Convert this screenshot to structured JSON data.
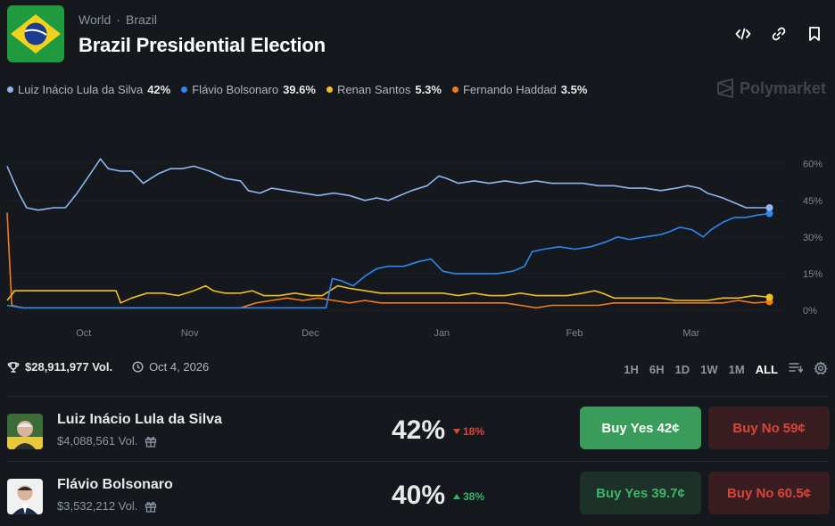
{
  "breadcrumb": {
    "first": "World",
    "sep": "·",
    "second": "Brazil"
  },
  "title": "Brazil Presidential Election",
  "brand": {
    "name": "Polymarket"
  },
  "icons": {
    "embed": "code-icon",
    "link": "link-icon",
    "bookmark": "bookmark-icon"
  },
  "colors": {
    "lula": "#8fb6ee",
    "bolsonaro": "#2f86f0",
    "santos": "#f0c020",
    "haddad": "#f07a1e",
    "buy_yes": "#3a9c5b",
    "buy_no": "#d8453b"
  },
  "legend": [
    {
      "name": "Luiz Inácio Lula da Silva",
      "pct": "42%",
      "color": "#8fb6ee"
    },
    {
      "name": "Flávio Bolsonaro",
      "pct": "39.6%",
      "color": "#2f86f0"
    },
    {
      "name": "Renan Santos",
      "pct": "5.3%",
      "color": "#f0c020"
    },
    {
      "name": "Fernando Haddad",
      "pct": "3.5%",
      "color": "#f07a1e"
    }
  ],
  "chart_data": {
    "type": "line",
    "x_ticks": [
      "Oct",
      "Nov",
      "Dec",
      "Jan",
      "Feb",
      "Mar"
    ],
    "y_ticks": [
      "60%",
      "45%",
      "30%",
      "15%",
      "0%"
    ],
    "ylim": [
      0,
      65
    ],
    "x_range": [
      0,
      100
    ],
    "grid": true,
    "legend_position": "top-left",
    "series": [
      {
        "name": "Luiz Inácio Lula da Silva",
        "color": "#8fb6ee",
        "points": [
          [
            0,
            59
          ],
          [
            0.8,
            53
          ],
          [
            1.5,
            48
          ],
          [
            2.5,
            42
          ],
          [
            4,
            41
          ],
          [
            6,
            42
          ],
          [
            7.5,
            42
          ],
          [
            9,
            48
          ],
          [
            10.5,
            55
          ],
          [
            12,
            62
          ],
          [
            13,
            58
          ],
          [
            14.5,
            57
          ],
          [
            16,
            57
          ],
          [
            17.5,
            52
          ],
          [
            19.5,
            56
          ],
          [
            21,
            58
          ],
          [
            22.5,
            58
          ],
          [
            24,
            59
          ],
          [
            26,
            57
          ],
          [
            28,
            54
          ],
          [
            30,
            53
          ],
          [
            31,
            49
          ],
          [
            32.5,
            48
          ],
          [
            34,
            50
          ],
          [
            36,
            49
          ],
          [
            38,
            48
          ],
          [
            40,
            47
          ],
          [
            42,
            48
          ],
          [
            44,
            47
          ],
          [
            46,
            45
          ],
          [
            47.5,
            46
          ],
          [
            49,
            45
          ],
          [
            50.5,
            47
          ],
          [
            52,
            49
          ],
          [
            54,
            51
          ],
          [
            55.5,
            55
          ],
          [
            56.5,
            54
          ],
          [
            58,
            52
          ],
          [
            60,
            53
          ],
          [
            62,
            52
          ],
          [
            64,
            53
          ],
          [
            66,
            52
          ],
          [
            68,
            53
          ],
          [
            70,
            52
          ],
          [
            72,
            52
          ],
          [
            74,
            52
          ],
          [
            76,
            51
          ],
          [
            78,
            51
          ],
          [
            80,
            50
          ],
          [
            82,
            50
          ],
          [
            84,
            49
          ],
          [
            86,
            50
          ],
          [
            87.5,
            51
          ],
          [
            89,
            50
          ],
          [
            90,
            48
          ],
          [
            92,
            46
          ],
          [
            93.5,
            44
          ],
          [
            95,
            42
          ],
          [
            96.5,
            42
          ],
          [
            98,
            42
          ]
        ]
      },
      {
        "name": "Flávio Bolsonaro",
        "color": "#2f86f0",
        "points": [
          [
            0,
            2
          ],
          [
            2,
            1
          ],
          [
            4,
            1
          ],
          [
            6,
            1
          ],
          [
            8,
            1
          ],
          [
            10,
            1
          ],
          [
            12,
            1
          ],
          [
            14,
            1
          ],
          [
            16,
            1
          ],
          [
            18,
            1
          ],
          [
            20,
            1
          ],
          [
            22,
            1
          ],
          [
            24,
            1
          ],
          [
            26,
            1
          ],
          [
            28,
            1
          ],
          [
            30,
            1
          ],
          [
            32,
            1
          ],
          [
            34,
            1
          ],
          [
            36,
            1
          ],
          [
            38,
            1
          ],
          [
            40,
            1
          ],
          [
            41,
            1
          ],
          [
            41.8,
            13
          ],
          [
            43,
            12
          ],
          [
            44.5,
            10
          ],
          [
            46,
            14
          ],
          [
            47.5,
            17
          ],
          [
            49,
            18
          ],
          [
            51,
            18
          ],
          [
            53,
            20
          ],
          [
            54.5,
            21
          ],
          [
            56,
            16
          ],
          [
            57.5,
            15
          ],
          [
            59,
            15
          ],
          [
            61,
            15
          ],
          [
            63,
            15
          ],
          [
            65,
            16
          ],
          [
            66.5,
            18
          ],
          [
            67.5,
            24
          ],
          [
            69,
            25
          ],
          [
            71,
            26
          ],
          [
            73,
            25
          ],
          [
            75,
            26
          ],
          [
            77,
            28
          ],
          [
            78.5,
            30
          ],
          [
            80,
            29
          ],
          [
            82,
            30
          ],
          [
            84,
            31
          ],
          [
            85,
            32
          ],
          [
            86.5,
            34
          ],
          [
            88,
            33
          ],
          [
            89.5,
            30
          ],
          [
            90.5,
            33
          ],
          [
            92,
            36
          ],
          [
            93.5,
            38
          ],
          [
            95,
            38
          ],
          [
            96.5,
            39
          ],
          [
            98,
            39.6
          ]
        ]
      },
      {
        "name": "Renan Santos",
        "color": "#f0c020",
        "points": [
          [
            0,
            4
          ],
          [
            1,
            8
          ],
          [
            2.5,
            8
          ],
          [
            4,
            8
          ],
          [
            6,
            8
          ],
          [
            8,
            8
          ],
          [
            10,
            8
          ],
          [
            12,
            8
          ],
          [
            14,
            8
          ],
          [
            14.6,
            3
          ],
          [
            16,
            5
          ],
          [
            18,
            7
          ],
          [
            20,
            7
          ],
          [
            22,
            6
          ],
          [
            24,
            8
          ],
          [
            25.5,
            10
          ],
          [
            26.5,
            8
          ],
          [
            28,
            7
          ],
          [
            30,
            7
          ],
          [
            31.5,
            8
          ],
          [
            33,
            6
          ],
          [
            35,
            6
          ],
          [
            37,
            7
          ],
          [
            39,
            6
          ],
          [
            40.5,
            6
          ],
          [
            41.5,
            8
          ],
          [
            42.5,
            10
          ],
          [
            44,
            9
          ],
          [
            46,
            8
          ],
          [
            48,
            7
          ],
          [
            50,
            7
          ],
          [
            52,
            7
          ],
          [
            54,
            7
          ],
          [
            56,
            7
          ],
          [
            58,
            6
          ],
          [
            60,
            7
          ],
          [
            62,
            6
          ],
          [
            64,
            6
          ],
          [
            66,
            7
          ],
          [
            68,
            6
          ],
          [
            70,
            6
          ],
          [
            72,
            6
          ],
          [
            74,
            7
          ],
          [
            75.5,
            8
          ],
          [
            76.5,
            7
          ],
          [
            78,
            5
          ],
          [
            80,
            5
          ],
          [
            82,
            5
          ],
          [
            84,
            5
          ],
          [
            86,
            4
          ],
          [
            88,
            4
          ],
          [
            90,
            4
          ],
          [
            92,
            5
          ],
          [
            94,
            5
          ],
          [
            96,
            6
          ],
          [
            98,
            5.3
          ]
        ]
      },
      {
        "name": "Fernando Haddad",
        "color": "#f07a1e",
        "points": [
          [
            0,
            40
          ],
          [
            0.6,
            2
          ],
          [
            2,
            1
          ],
          [
            4,
            1
          ],
          [
            6,
            1
          ],
          [
            8,
            1
          ],
          [
            10,
            1
          ],
          [
            12,
            1
          ],
          [
            14,
            1
          ],
          [
            16,
            1
          ],
          [
            18,
            1
          ],
          [
            20,
            1
          ],
          [
            22,
            1
          ],
          [
            24,
            1
          ],
          [
            26,
            1
          ],
          [
            28,
            1
          ],
          [
            30,
            1
          ],
          [
            32,
            3
          ],
          [
            34,
            4
          ],
          [
            36,
            5
          ],
          [
            38,
            4
          ],
          [
            40,
            5
          ],
          [
            42,
            4
          ],
          [
            44,
            3
          ],
          [
            46,
            4
          ],
          [
            48,
            3
          ],
          [
            50,
            3
          ],
          [
            52,
            3
          ],
          [
            54,
            3
          ],
          [
            56,
            3
          ],
          [
            58,
            3
          ],
          [
            60,
            3
          ],
          [
            62,
            3
          ],
          [
            64,
            3
          ],
          [
            66,
            2
          ],
          [
            68,
            1
          ],
          [
            70,
            2
          ],
          [
            72,
            2
          ],
          [
            74,
            2
          ],
          [
            76,
            2
          ],
          [
            78,
            3
          ],
          [
            80,
            3
          ],
          [
            82,
            3
          ],
          [
            84,
            3
          ],
          [
            86,
            3
          ],
          [
            88,
            3
          ],
          [
            90,
            3
          ],
          [
            92,
            3
          ],
          [
            94,
            4
          ],
          [
            96,
            3
          ],
          [
            98,
            3.5
          ]
        ]
      }
    ]
  },
  "stats": {
    "volume": "$28,911,977 Vol.",
    "date": "Oct 4, 2026"
  },
  "ranges": [
    "1H",
    "6H",
    "1D",
    "1W",
    "1M",
    "ALL"
  ],
  "active_range": "ALL",
  "outcomes": [
    {
      "name": "Luiz Inácio Lula da Silva",
      "volume": "$4,088,561 Vol.",
      "pct": "42%",
      "change": "18%",
      "dir": "down",
      "yes_label": "Buy Yes",
      "yes_price": "42¢",
      "no_label": "Buy No",
      "no_price": "59¢"
    },
    {
      "name": "Flávio Bolsonaro",
      "volume": "$3,532,212 Vol.",
      "pct": "40%",
      "change": "38%",
      "dir": "up",
      "yes_label": "Buy Yes",
      "yes_price": "39.7¢",
      "no_label": "Buy No",
      "no_price": "60.5¢"
    }
  ]
}
